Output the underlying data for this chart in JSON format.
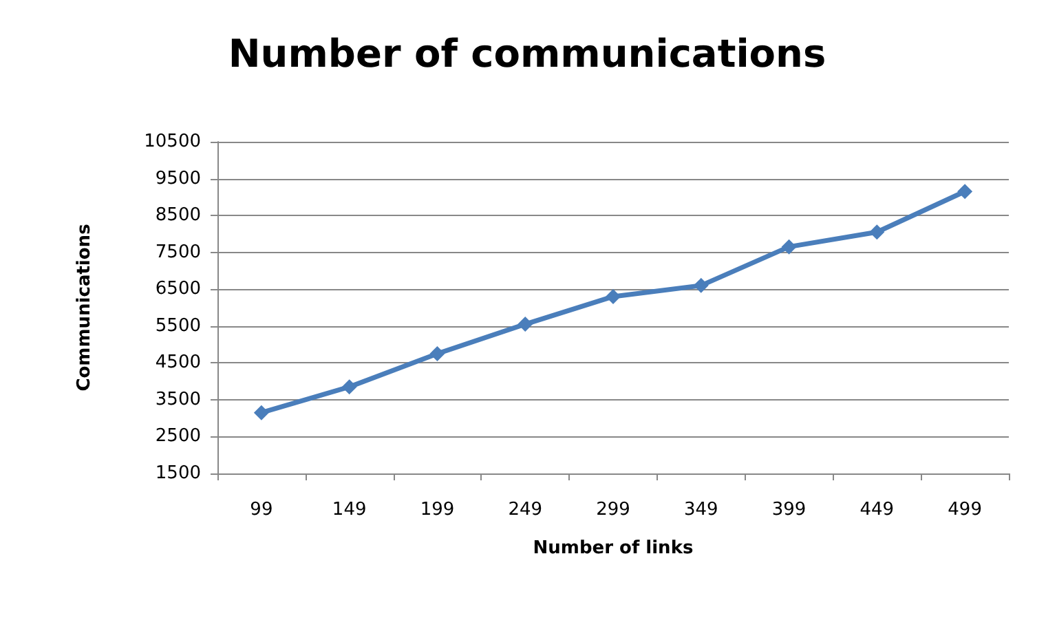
{
  "chart_data": {
    "type": "line",
    "title": "Number of communications",
    "xlabel": "Number of links",
    "ylabel": "Communications",
    "categories": [
      "99",
      "149",
      "199",
      "249",
      "299",
      "349",
      "399",
      "449",
      "499"
    ],
    "series": [
      {
        "color": "#4a7ebb",
        "values": [
          3150,
          3850,
          4750,
          5550,
          6300,
          6600,
          7650,
          8050,
          9150
        ]
      }
    ],
    "ylim": [
      1500,
      10500
    ],
    "yticks": [
      1500,
      2500,
      3500,
      4500,
      5500,
      6500,
      7500,
      8500,
      9500,
      10500
    ],
    "grid": "y",
    "marker": "diamond",
    "line_style": "solid"
  }
}
